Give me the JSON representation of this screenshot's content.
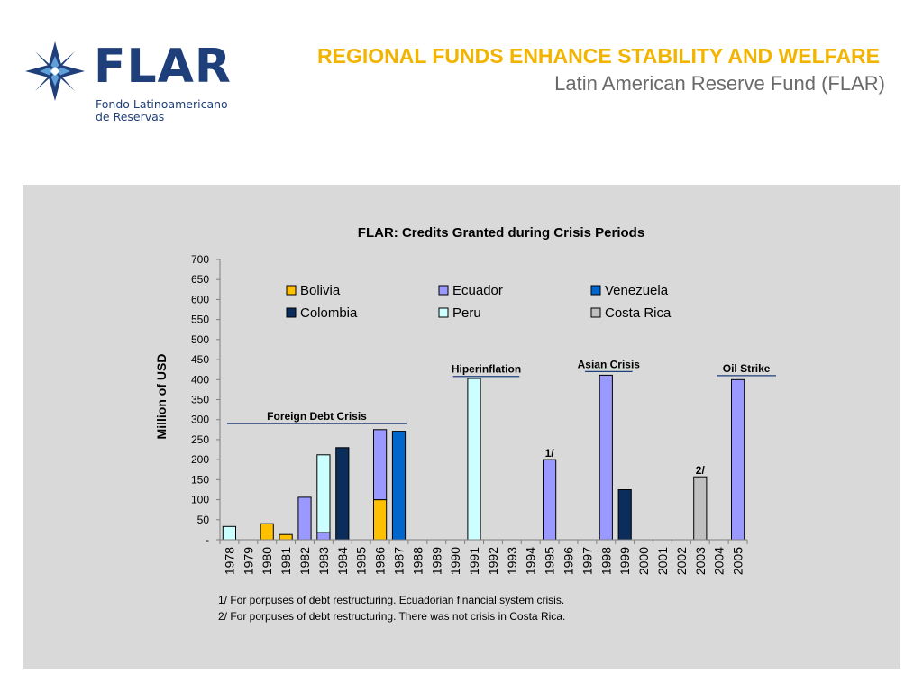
{
  "header": {
    "logo_word": "FLAR",
    "logo_sub_line1": "Fondo Latinoamericano",
    "logo_sub_line2": "de Reservas",
    "title": "REGIONAL FUNDS ENHANCE STABILITY AND WELFARE",
    "subtitle": "Latin American Reserve Fund (FLAR)"
  },
  "colors": {
    "title": "#f2b400",
    "brand_blue": "#1f3f7a",
    "brand_light_blue": "#5fa0d8",
    "panel_bg": "#d9d9d9"
  },
  "chart_data": {
    "type": "bar",
    "stacked": true,
    "title": "FLAR: Credits Granted during Crisis Periods",
    "xlabel": "",
    "ylabel": "Million of USD",
    "ylim": [
      0,
      700
    ],
    "yticks": [
      0,
      50,
      100,
      150,
      200,
      250,
      300,
      350,
      400,
      450,
      500,
      550,
      600,
      650,
      700
    ],
    "ytick_labels": [
      "-",
      "50",
      "100",
      "150",
      "200",
      "250",
      "300",
      "350",
      "400",
      "450",
      "500",
      "550",
      "600",
      "650",
      "700"
    ],
    "grid": false,
    "legend_position": "top",
    "categories": [
      "1978",
      "1979",
      "1980",
      "1981",
      "1982",
      "1983",
      "1984",
      "1985",
      "1986",
      "1987",
      "1988",
      "1989",
      "1990",
      "1991",
      "1992",
      "1993",
      "1994",
      "1995",
      "1996",
      "1997",
      "1998",
      "1999",
      "2000",
      "2001",
      "2002",
      "2003",
      "2004",
      "2005"
    ],
    "series": [
      {
        "name": "Bolivia",
        "color": "#ffc000",
        "values": [
          0,
          0,
          40,
          13,
          0,
          0,
          0,
          0,
          100,
          0,
          0,
          0,
          0,
          0,
          0,
          0,
          0,
          0,
          0,
          0,
          0,
          0,
          0,
          0,
          0,
          0,
          0,
          0
        ]
      },
      {
        "name": "Colombia",
        "color": "#0b2d5c",
        "values": [
          0,
          0,
          0,
          0,
          0,
          0,
          230,
          0,
          0,
          0,
          0,
          0,
          0,
          0,
          0,
          0,
          0,
          0,
          0,
          0,
          0,
          125,
          0,
          0,
          0,
          0,
          0,
          0
        ]
      },
      {
        "name": "Ecuador",
        "color": "#9999ff",
        "values": [
          0,
          0,
          0,
          0,
          106,
          18,
          0,
          0,
          175,
          0,
          0,
          0,
          0,
          0,
          0,
          0,
          0,
          200,
          0,
          0,
          411,
          0,
          0,
          0,
          0,
          0,
          0,
          400
        ]
      },
      {
        "name": "Peru",
        "color": "#ccffff",
        "values": [
          33,
          0,
          0,
          0,
          0,
          194,
          0,
          0,
          0,
          0,
          0,
          0,
          0,
          403,
          0,
          0,
          0,
          0,
          0,
          0,
          0,
          0,
          0,
          0,
          0,
          0,
          0,
          0
        ]
      },
      {
        "name": "Venezuela",
        "color": "#0066cc",
        "values": [
          0,
          0,
          0,
          0,
          0,
          0,
          0,
          0,
          0,
          271,
          0,
          0,
          0,
          0,
          0,
          0,
          0,
          0,
          0,
          0,
          0,
          0,
          0,
          0,
          0,
          0,
          0,
          0
        ]
      },
      {
        "name": "Costa Rica",
        "color": "#c0c0c0",
        "values": [
          0,
          0,
          0,
          0,
          0,
          0,
          0,
          0,
          0,
          0,
          0,
          0,
          0,
          0,
          0,
          0,
          0,
          0,
          0,
          0,
          0,
          0,
          0,
          0,
          0,
          157,
          0,
          0
        ]
      }
    ],
    "annotations": [
      {
        "text": "Foreign Debt Crisis",
        "from": "1978",
        "to": "1988",
        "y": 290
      },
      {
        "text": "Hiperinflation",
        "from": "1990",
        "to": "1994",
        "y": 408
      },
      {
        "text": "Asian Crisis",
        "from": "1997",
        "to": "2000",
        "y": 420
      },
      {
        "text": "Oil Strike",
        "from": "2004",
        "to": "2007",
        "y": 410
      }
    ],
    "bar_labels": [
      {
        "text": "1/",
        "category": "1995"
      },
      {
        "text": "2/",
        "category": "2003"
      }
    ]
  },
  "notes": [
    "1/ For porpuses of debt restructuring. Ecuadorian financial system crisis.",
    "2/ For porpuses of debt restructuring. There was not crisis in Costa Rica."
  ]
}
